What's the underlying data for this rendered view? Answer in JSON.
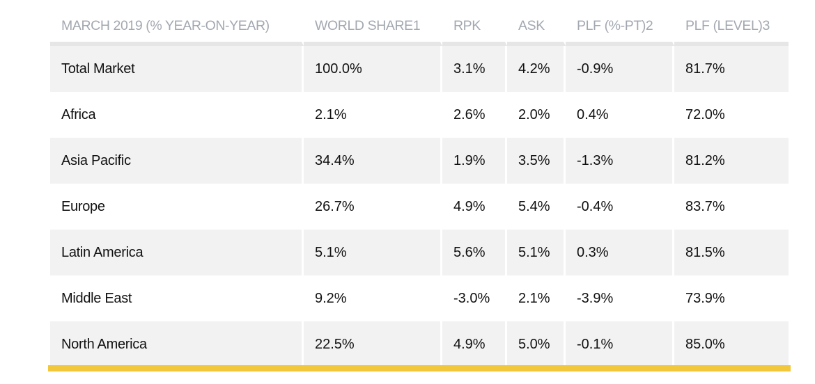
{
  "table": {
    "headers": [
      "MARCH 2019 (% YEAR-ON-YEAR)",
      "WORLD SHARE1",
      "RPK",
      "ASK",
      "PLF (%-PT)2",
      "PLF (LEVEL)3"
    ],
    "rows": [
      [
        "Total Market",
        "100.0%",
        "3.1%",
        "4.2%",
        "-0.9%",
        "81.7%"
      ],
      [
        "Africa",
        "2.1%",
        "2.6%",
        "2.0%",
        "0.4%",
        "72.0%"
      ],
      [
        "Asia Pacific",
        "34.4%",
        "1.9%",
        "3.5%",
        "-1.3%",
        "81.2%"
      ],
      [
        "Europe",
        "26.7%",
        "4.9%",
        "5.4%",
        "-0.4%",
        "83.7%"
      ],
      [
        "Latin America",
        "5.1%",
        "5.6%",
        "5.1%",
        "0.3%",
        "81.5%"
      ],
      [
        "Middle East",
        "9.2%",
        "-3.0%",
        "2.1%",
        "-3.9%",
        "73.9%"
      ],
      [
        "North America",
        "22.5%",
        "4.9%",
        "5.0%",
        "-0.1%",
        "85.0%"
      ]
    ]
  },
  "colors": {
    "header_text": "#a3a8b0",
    "row_stripe": "#f2f2f2",
    "accent_bar": "#f2c73b"
  }
}
